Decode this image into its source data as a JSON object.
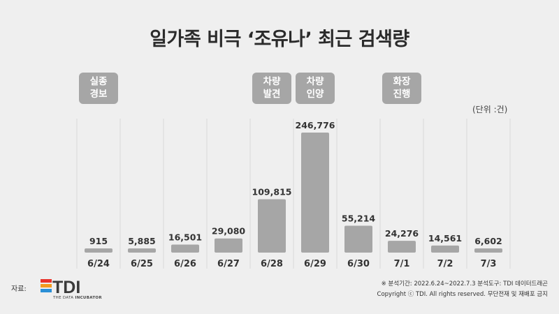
{
  "title": "일가족 비극 ‘조유나’ 최근 검색량",
  "unit": "(단위 :건)",
  "events": [
    {
      "index": 0,
      "lines": [
        "실종",
        "경보"
      ]
    },
    {
      "index": 4,
      "lines": [
        "차량",
        "발견"
      ]
    },
    {
      "index": 5,
      "lines": [
        "차량",
        "인양"
      ]
    },
    {
      "index": 7,
      "lines": [
        "화장",
        "진행"
      ]
    }
  ],
  "source_label": "자료:",
  "logo": {
    "text": "TDI",
    "subtitle_prefix": "THE DATA ",
    "subtitle_bold": "INCUBATOR"
  },
  "footnote1": "※ 분석기간: 2022.6.24~2022.7.3   분석도구: TDI 데이터드래곤",
  "footnote2": "Copyright ⓒ TDI. All rights reserved. 무단전재 및 재배포 금지",
  "colors": {
    "background": "#efefef",
    "bar": "#a6a6a6",
    "event_box": "#a6a6a6",
    "divider": "#d8d8d8",
    "text": "#333333",
    "logo_text": "#3a3a3a",
    "logo_red": "#e8322b",
    "logo_orange": "#f39a1e",
    "logo_blue": "#2a8fd6"
  },
  "chart_data": {
    "type": "bar",
    "categories": [
      "6/24",
      "6/25",
      "6/26",
      "6/27",
      "6/28",
      "6/29",
      "6/30",
      "7/1",
      "7/2",
      "7/3"
    ],
    "values": [
      915,
      5885,
      16501,
      29080,
      109815,
      246776,
      55214,
      24276,
      14561,
      6602
    ],
    "labels": [
      "915",
      "5,885",
      "16,501",
      "29,080",
      "109,815",
      "246,776",
      "55,214",
      "24,276",
      "14,561",
      "6,602"
    ],
    "title": "일가족 비극 ‘조유나’ 최근 검색량",
    "xlabel": "",
    "ylabel": "",
    "ylim": [
      0,
      246776
    ],
    "grid": false
  }
}
